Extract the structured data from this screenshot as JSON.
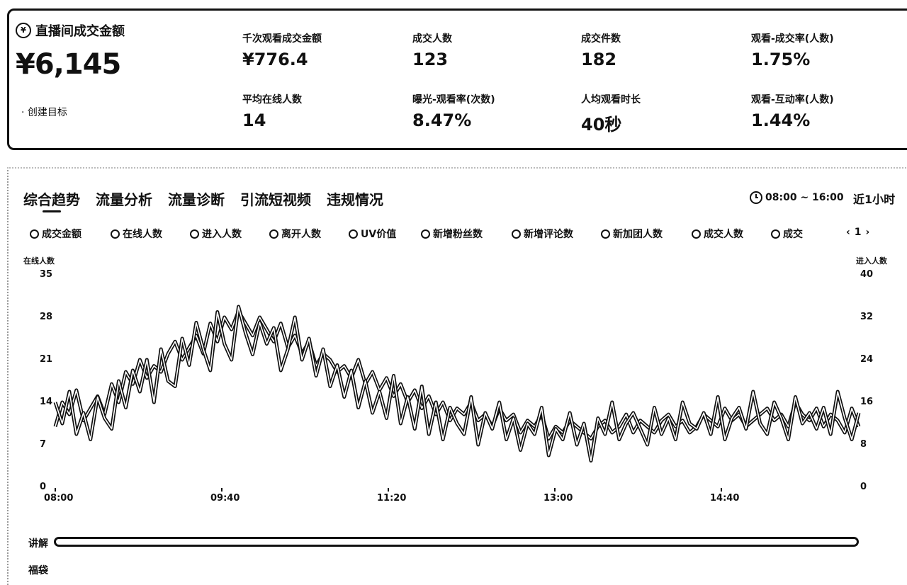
{
  "summary": {
    "main_label": "直播间成交金额",
    "main_value": "¥6,145",
    "create_goal": "· 创建目标",
    "metrics": [
      {
        "label": "千次观看成交金额",
        "value": "¥776.4"
      },
      {
        "label": "成交人数",
        "value": "123"
      },
      {
        "label": "成交件数",
        "value": "182"
      },
      {
        "label": "观看-成交率(人数)",
        "value": "1.75%"
      },
      {
        "label": "平均在线人数",
        "value": "14"
      },
      {
        "label": "曝光-观看率(次数)",
        "value": "8.47%"
      },
      {
        "label": "人均观看时长",
        "value": "40秒"
      },
      {
        "label": "观看-互动率(人数)",
        "value": "1.44%"
      }
    ]
  },
  "tabs": [
    "综合趋势",
    "流量分析",
    "流量诊断",
    "引流短视频",
    "违规情况"
  ],
  "time_range": "08:00 ~ 16:00",
  "recent": "近1小时",
  "legend": [
    "成交金额",
    "在线人数",
    "进入人数",
    "离开人数",
    "UV价值",
    "新增粉丝数",
    "新增评论数",
    "新加团人数",
    "成交人数",
    "成交"
  ],
  "pager": {
    "prev": "‹",
    "page": "1",
    "next": "›"
  },
  "chart_data": {
    "type": "line",
    "left_axis": {
      "title": "在线人数",
      "ticks": [
        "35",
        "28",
        "21",
        "14",
        "7",
        "0"
      ],
      "ylim": [
        0,
        35
      ]
    },
    "right_axis": {
      "title": "进入人数",
      "ticks": [
        "40",
        "32",
        "24",
        "16",
        "8",
        "0"
      ],
      "ylim": [
        0,
        40
      ]
    },
    "x_ticks": [
      "08:00",
      "09:40",
      "11:20",
      "13:00",
      "14:40"
    ],
    "series": [
      {
        "name": "在线人数",
        "axis": "left",
        "values": [
          10,
          14,
          12,
          16,
          11,
          13,
          15,
          12,
          17,
          14,
          19,
          17,
          21,
          18,
          20,
          19,
          22,
          24,
          21,
          23,
          25,
          22,
          27,
          24,
          28,
          26,
          29,
          27,
          25,
          28,
          26,
          24,
          27,
          23,
          25,
          22,
          24,
          20,
          22,
          21,
          19,
          20,
          18,
          21,
          17,
          19,
          16,
          18,
          15,
          17,
          14,
          16,
          13,
          15,
          12,
          14,
          11,
          13,
          12,
          14,
          11,
          12,
          10,
          13,
          11,
          12,
          9,
          11,
          10,
          12,
          8,
          10,
          9,
          11,
          10,
          9,
          8,
          10,
          11,
          9,
          10,
          12,
          9,
          11,
          10,
          9,
          11,
          12,
          10,
          11,
          9,
          10,
          12,
          11,
          10,
          13,
          11,
          12,
          10,
          11,
          12,
          13,
          11,
          12,
          10,
          14,
          12,
          11,
          13,
          10,
          12,
          11,
          9,
          13,
          10
        ]
      },
      {
        "name": "进入人数",
        "axis": "right",
        "values": [
          16,
          12,
          18,
          10,
          14,
          9,
          17,
          13,
          11,
          20,
          15,
          22,
          18,
          24,
          16,
          26,
          20,
          19,
          28,
          23,
          31,
          26,
          22,
          33,
          27,
          24,
          34,
          29,
          25,
          31,
          27,
          30,
          22,
          26,
          32,
          24,
          28,
          21,
          26,
          19,
          23,
          17,
          22,
          15,
          20,
          14,
          18,
          13,
          21,
          12,
          17,
          11,
          19,
          10,
          16,
          9,
          15,
          12,
          10,
          17,
          8,
          14,
          11,
          16,
          9,
          13,
          7,
          12,
          10,
          15,
          6,
          11,
          9,
          14,
          8,
          12,
          5,
          13,
          10,
          16,
          9,
          12,
          14,
          11,
          8,
          15,
          10,
          13,
          9,
          16,
          12,
          11,
          14,
          10,
          17,
          9,
          13,
          15,
          11,
          18,
          12,
          10,
          16,
          13,
          9,
          17,
          12,
          14,
          11,
          15,
          10,
          18,
          13,
          9,
          14
        ]
      }
    ]
  },
  "tracks": [
    "讲解",
    "福袋"
  ]
}
